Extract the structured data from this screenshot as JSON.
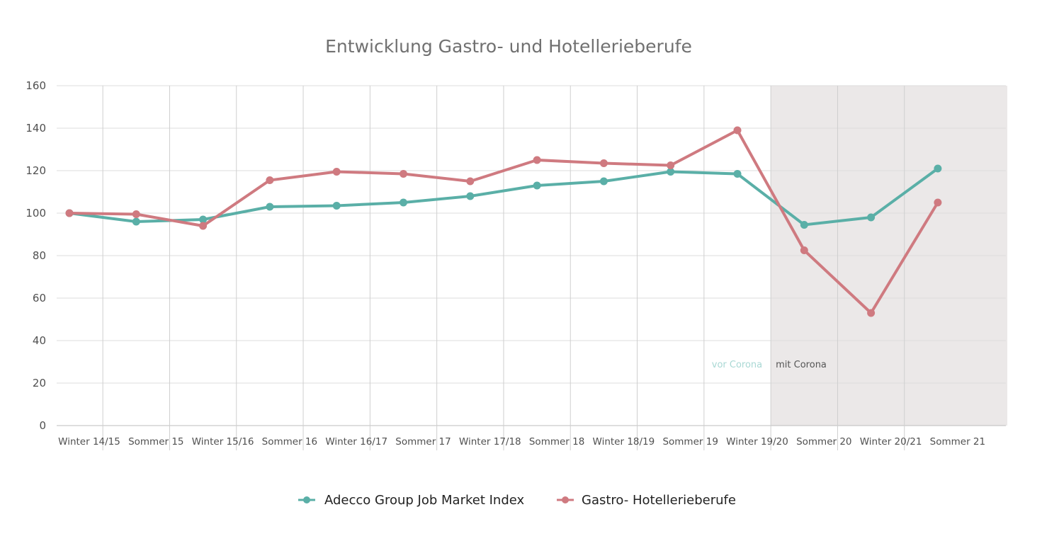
{
  "chart_data": {
    "type": "line",
    "title": "Entwicklung Gastro- und Hotellerieberufe",
    "xlabel": "",
    "ylabel": "",
    "ylim": [
      0,
      160
    ],
    "yticks": [
      0,
      20,
      40,
      60,
      80,
      100,
      120,
      140,
      160
    ],
    "grid": true,
    "legend_position": "bottom-center",
    "categories": [
      "Winter 14/15",
      "Sommer 15",
      "Winter 15/16",
      "Sommer 16",
      "Winter 16/17",
      "Sommer 17",
      "Winter 17/18",
      "Sommer 18",
      "Winter 18/19",
      "Sommer 19",
      "Winter 19/20",
      "Sommer 20",
      "Winter 20/21",
      "Sommer 21"
    ],
    "series": [
      {
        "name": "Adecco Group Job Market Index",
        "color": "#5aafa7",
        "values": [
          100,
          96,
          97,
          103,
          103.5,
          105,
          108,
          113,
          115,
          119.5,
          118.5,
          94.5,
          98,
          121
        ]
      },
      {
        "name": "Gastro- Hotellerieberufe",
        "color": "#cf7a80",
        "values": [
          100,
          99.5,
          94,
          115.5,
          119.5,
          118.5,
          115,
          125,
          123.5,
          122.5,
          139,
          82.5,
          53,
          105
        ]
      }
    ],
    "shaded_region": {
      "from_category": "Sommer 20",
      "to_category": "Sommer 21",
      "color": "#ebe8e8"
    },
    "annotations": [
      {
        "text": "vor Corona",
        "color": "#a9d8d4"
      },
      {
        "text": "mit Corona",
        "color": "#555555"
      }
    ]
  }
}
